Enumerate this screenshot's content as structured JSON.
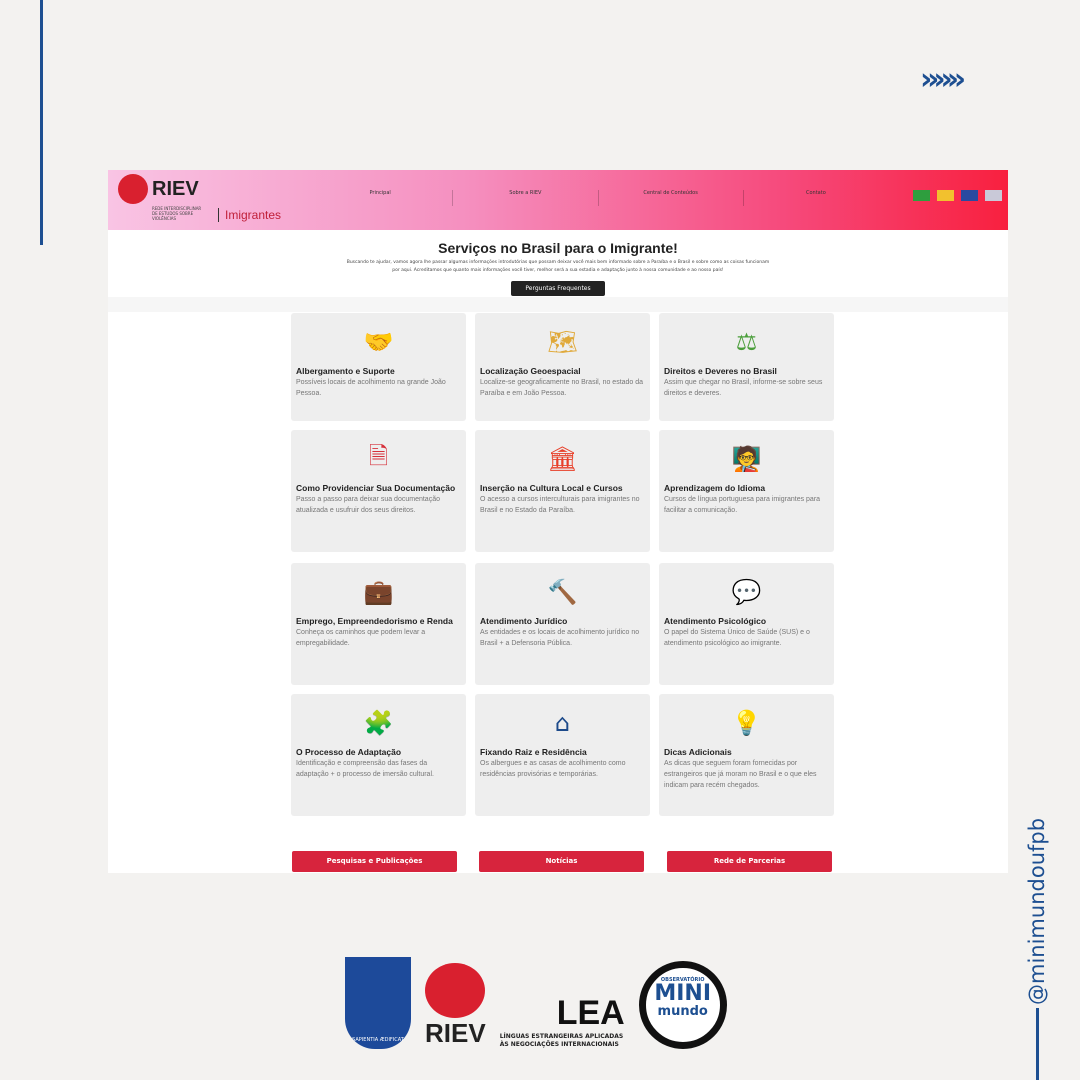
{
  "decor": {
    "chevron": "»»»",
    "handle": "@minimundoufpb"
  },
  "header": {
    "logo": "RIEV",
    "logo_sub": "REDE INTERDISCIPLINAR DE ESTUDOS SOBRE VIOLÊNCIAS",
    "section": "Imigrantes",
    "nav": [
      "Principal",
      "Sobre a RIEV",
      "Central de Conteúdos",
      "Contato"
    ],
    "flags": [
      {
        "name": "brazil-flag",
        "color": "#2e9e3e"
      },
      {
        "name": "spain-flag",
        "color": "#f2c12e"
      },
      {
        "name": "france-flag",
        "color": "#2a4aa0"
      },
      {
        "name": "usa-flag",
        "color": "#c9c9d8"
      }
    ]
  },
  "intro": {
    "title": "Serviços no Brasil para o Imigrante!",
    "text": "Buscando te ajudar, vamos agora lhe passar algumas informações introdutórias que possam deixar você mais bem informado sobre a Paraíba e o Brasil e sobre como as coisas funcionam por aqui. Acreditamos que quanto mais informações você tiver, melhor será a sua estadia e adaptação junto à nossa comunidade e ao nosso país!",
    "faq": "Perguntas Frequentes"
  },
  "cards": [
    {
      "icon": "handshake-icon",
      "color": "#e0203a",
      "glyph": "🤝",
      "title": "Albergamento e Suporte",
      "text": "Possíveis locais de acolhimento na grande João Pessoa."
    },
    {
      "icon": "map-pin-icon",
      "color": "#e0a93a",
      "glyph": "🗺",
      "title": "Localização Geoespacial",
      "text": "Localize-se geograficamente no Brasil, no estado da Paraíba e em João Pessoa."
    },
    {
      "icon": "scales-icon",
      "color": "#4a9e3a",
      "glyph": "⚖",
      "title": "Direitos e Deveres no Brasil",
      "text": "Assim que chegar no Brasil, informe-se sobre seus direitos e deveres."
    },
    {
      "icon": "document-icon",
      "color": "#d6303a",
      "glyph": "🗎",
      "title": "Como Providenciar Sua Documentação",
      "text": "Passo a passo para deixar sua documentação atualizada e usufruir dos seus direitos."
    },
    {
      "icon": "museum-icon",
      "color": "#e8402a",
      "glyph": "🏛",
      "title": "Inserção na Cultura Local e Cursos",
      "text": "O acesso a cursos interculturais para imigrantes no Brasil e no Estado da Paraíba."
    },
    {
      "icon": "teacher-board-icon",
      "color": "#2aa8e0",
      "glyph": "🧑‍🏫",
      "title": "Aprendizagem do Idioma",
      "text": "Cursos de língua portuguesa para imigrantes para facilitar a comunicação."
    },
    {
      "icon": "briefcase-icon",
      "color": "#f5c018",
      "glyph": "💼",
      "title": "Emprego, Empreendedorismo e Renda",
      "text": "Conheça os caminhos que podem levar a empregabilidade."
    },
    {
      "icon": "gavel-icon",
      "color": "#a81c3a",
      "glyph": "🔨",
      "title": "Atendimento Jurídico",
      "text": "As entidades e os locais de acolhimento jurídico no Brasil + a Defensoria Pública."
    },
    {
      "icon": "chat-bubbles-icon",
      "color": "#f0702a",
      "glyph": "💬",
      "title": "Atendimento Psicológico",
      "text": "O papel do Sistema Único de Saúde (SUS) e o atendimento psicológico ao imigrante."
    },
    {
      "icon": "puzzle-icon",
      "color": "#e0206a",
      "glyph": "🧩",
      "title": "O Processo de Adaptação",
      "text": "Identificação e compreensão das fases da adaptação + o processo de imersão cultural."
    },
    {
      "icon": "house-icon",
      "color": "#1d4a8a",
      "glyph": "⌂",
      "title": "Fixando Raiz e Residência",
      "text": "Os albergues e as casas de acolhimento como residências provisórias e temporárias."
    },
    {
      "icon": "lightbulb-icon",
      "color": "#f5a020",
      "glyph": "💡",
      "title": "Dicas Adicionais",
      "text": "As dicas que seguem foram fornecidas por estrangeiros que já moram no Brasil e o que eles indicam para recém chegados."
    }
  ],
  "buttons": [
    "Pesquisas e Publicações",
    "Notícias",
    "Rede de Parcerias"
  ],
  "partners": {
    "ufpb": "SAPIENTIA ÆDIFICAT",
    "riev": "RIEV",
    "lea": "LEA",
    "lea_sub": "LÍNGUAS ESTRANGEIRAS APLICADAS ÀS NEGOCIAÇÕES INTERNACIONAIS",
    "mini_top": "OBSERVATÓRIO",
    "mini": "MINI",
    "mini_bottom": "mundo"
  }
}
